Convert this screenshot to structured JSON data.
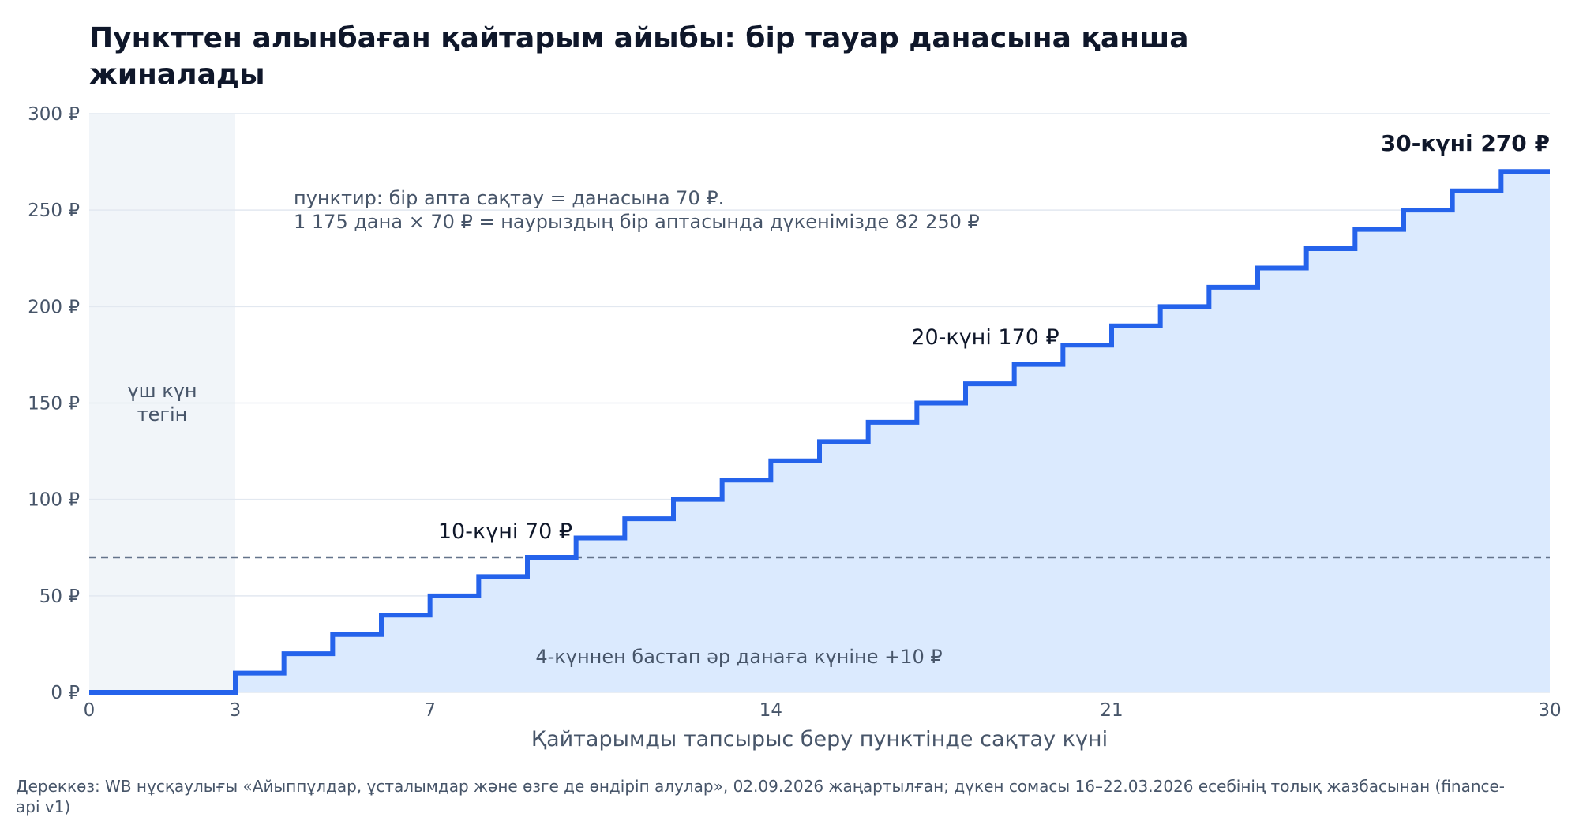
{
  "title": "Пункттен алынбаған қайтарым айыбы: бір тауар данасына қанша жиналады",
  "source": "Дереккөз: WB нұсқаулығы «Айыппұлдар, ұсталымдар және өзге де өндіріп алулар», 02.09.2026 жаңартылған; дүкен сомасы 16–22.03.2026 есебінің толық жазбасынан (finance-api v1)",
  "chart_data": {
    "type": "line",
    "step": true,
    "xlabel": "Қайтарымды тапсырыс беру пунктінде сақтау күні",
    "ylabel": "",
    "xlim": [
      0,
      30
    ],
    "ylim": [
      0,
      300
    ],
    "x_ticks": [
      0,
      3,
      7,
      14,
      21,
      30
    ],
    "y_ticks": [
      0,
      50,
      100,
      150,
      200,
      250,
      300
    ],
    "y_tick_labels": [
      "0 ₽",
      "50 ₽",
      "100 ₽",
      "150 ₽",
      "200 ₽",
      "250 ₽",
      "300 ₽"
    ],
    "grid": "horizontal",
    "series": [
      {
        "x": [
          0,
          1,
          2,
          3,
          4,
          5,
          6,
          7,
          8,
          9,
          10,
          11,
          12,
          13,
          14,
          15,
          16,
          17,
          18,
          19,
          20,
          21,
          22,
          23,
          24,
          25,
          26,
          27,
          28,
          29,
          30
        ],
        "values": [
          0,
          0,
          0,
          0,
          10,
          20,
          30,
          40,
          50,
          60,
          70,
          80,
          90,
          100,
          110,
          120,
          130,
          140,
          150,
          160,
          170,
          180,
          190,
          200,
          210,
          220,
          230,
          240,
          250,
          260,
          270
        ],
        "color": "#2563eb",
        "fill": "#dbeafe"
      }
    ],
    "free_period": {
      "x": [
        0,
        3
      ],
      "label": "үш күн тегін"
    },
    "reference_line": {
      "y": 70,
      "color": "#64748b"
    },
    "reference_note": [
      "пунктир: бір апта сақтау = данасына 70 ₽.",
      "1 175 дана × 70 ₽ = наурыздың бір аптасында дүкенімізде 82 250 ₽"
    ],
    "annotations": [
      {
        "text": "10-күні 70 ₽",
        "x": 10,
        "y": 70
      },
      {
        "text": "20-күні 170 ₽",
        "x": 20,
        "y": 170
      },
      {
        "text": "30-күні 270 ₽",
        "x": 30,
        "y": 270,
        "bold": true
      }
    ],
    "rate_note": "4-күннен бастап әр данаға күніне +10 ₽"
  }
}
